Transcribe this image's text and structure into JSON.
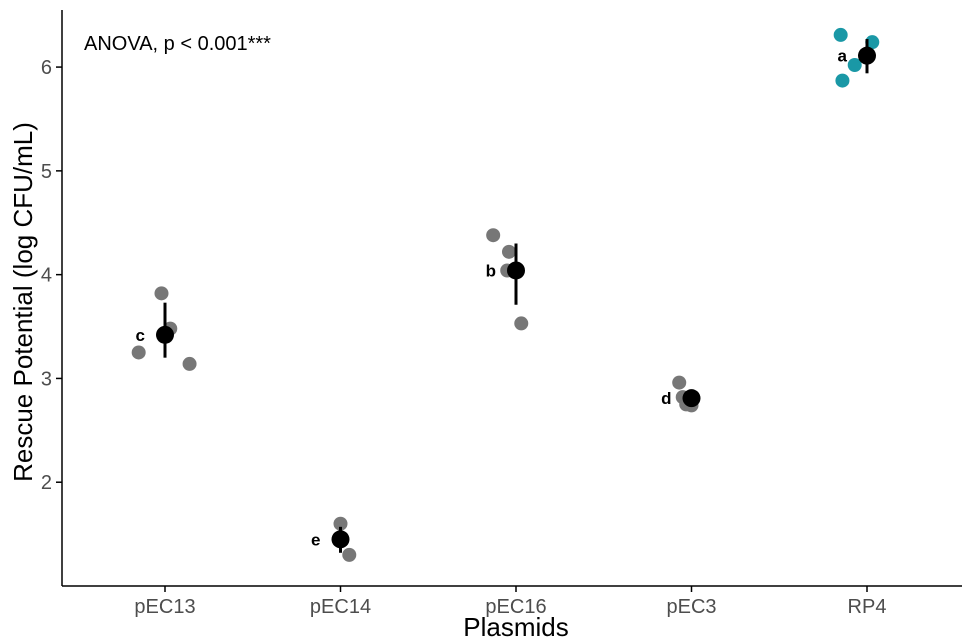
{
  "chart_data": {
    "type": "scatter",
    "xlabel": "Plasmids",
    "ylabel": "Rescue Potential (log CFU/mL)",
    "annotation": "ANOVA, p < 0.001***",
    "ylim": [
      1.0,
      6.55
    ],
    "yticks": [
      2,
      3,
      4,
      5,
      6
    ],
    "categories": [
      "pEC13",
      "pEC14",
      "pEC16",
      "pEC3",
      "RP4"
    ],
    "colors": {
      "default_point": "#777777",
      "highlight_point": "#1a98a6",
      "mean": "#000000"
    },
    "groups": [
      {
        "category": "pEC13",
        "letter": "c",
        "mean": 3.42,
        "err_low": 3.2,
        "err_high": 3.73,
        "point_color": "#777777",
        "points": [
          {
            "x_jitter": -0.15,
            "y": 3.25
          },
          {
            "x_jitter": -0.02,
            "y": 3.82
          },
          {
            "x_jitter": 0.03,
            "y": 3.48
          },
          {
            "x_jitter": 0.14,
            "y": 3.14
          }
        ]
      },
      {
        "category": "pEC14",
        "letter": "e",
        "mean": 1.45,
        "err_low": 1.32,
        "err_high": 1.57,
        "point_color": "#777777",
        "points": [
          {
            "x_jitter": 0.0,
            "y": 1.6
          },
          {
            "x_jitter": 0.05,
            "y": 1.3
          }
        ]
      },
      {
        "category": "pEC16",
        "letter": "b",
        "mean": 4.04,
        "err_low": 3.71,
        "err_high": 4.3,
        "point_color": "#777777",
        "points": [
          {
            "x_jitter": -0.13,
            "y": 4.38
          },
          {
            "x_jitter": -0.04,
            "y": 4.22
          },
          {
            "x_jitter": -0.05,
            "y": 4.04
          },
          {
            "x_jitter": 0.03,
            "y": 3.53
          }
        ]
      },
      {
        "category": "pEC3",
        "letter": "d",
        "mean": 2.81,
        "err_low": 2.74,
        "err_high": 2.88,
        "point_color": "#777777",
        "points": [
          {
            "x_jitter": -0.07,
            "y": 2.96
          },
          {
            "x_jitter": -0.05,
            "y": 2.82
          },
          {
            "x_jitter": -0.03,
            "y": 2.75
          },
          {
            "x_jitter": 0.0,
            "y": 2.74
          }
        ]
      },
      {
        "category": "RP4",
        "letter": "a",
        "mean": 6.11,
        "err_low": 5.94,
        "err_high": 6.27,
        "point_color": "#1a98a6",
        "points": [
          {
            "x_jitter": -0.15,
            "y": 6.31
          },
          {
            "x_jitter": -0.07,
            "y": 6.02
          },
          {
            "x_jitter": -0.14,
            "y": 5.87
          },
          {
            "x_jitter": 0.03,
            "y": 6.24
          }
        ]
      }
    ]
  }
}
